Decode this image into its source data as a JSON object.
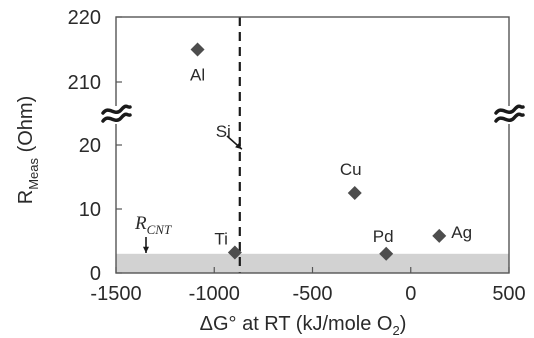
{
  "chart_data": {
    "type": "scatter",
    "xlabel": "ΔG° at RT (kJ/mole O₂)",
    "ylabel": "R_Meas (Ohm)",
    "xlim": [
      -1500,
      500
    ],
    "x_ticks": [
      "-1500",
      "-1000",
      "-500",
      "0",
      "500"
    ],
    "y_ticks_lower": [
      "0",
      "10",
      "20"
    ],
    "y_ticks_upper": [
      "210",
      "220"
    ],
    "ylim_lower": [
      0,
      24
    ],
    "ylim_upper": [
      206,
      222
    ],
    "axis_break": "between 20 and 210 Ohm",
    "points": [
      {
        "label": "Al",
        "x": -1085,
        "y": 215
      },
      {
        "label": "Si",
        "x": -880,
        "y": 19.5
      },
      {
        "label": "Cu",
        "x": -285,
        "y": 12.5
      },
      {
        "label": "Ti",
        "x": -895,
        "y": 3.2
      },
      {
        "label": "Pd",
        "x": -125,
        "y": 3.0
      },
      {
        "label": "Ag",
        "x": 145,
        "y": 5.8
      }
    ],
    "marker": "diamond",
    "marker_color": "#4d4d4d",
    "reference_line": {
      "x": -870,
      "style": "dashed"
    },
    "shaded_band": {
      "y_from": 0,
      "y_to": 3,
      "label": "R_CNT",
      "color": "#d2d2d2"
    },
    "grid": false,
    "legend": "none"
  }
}
